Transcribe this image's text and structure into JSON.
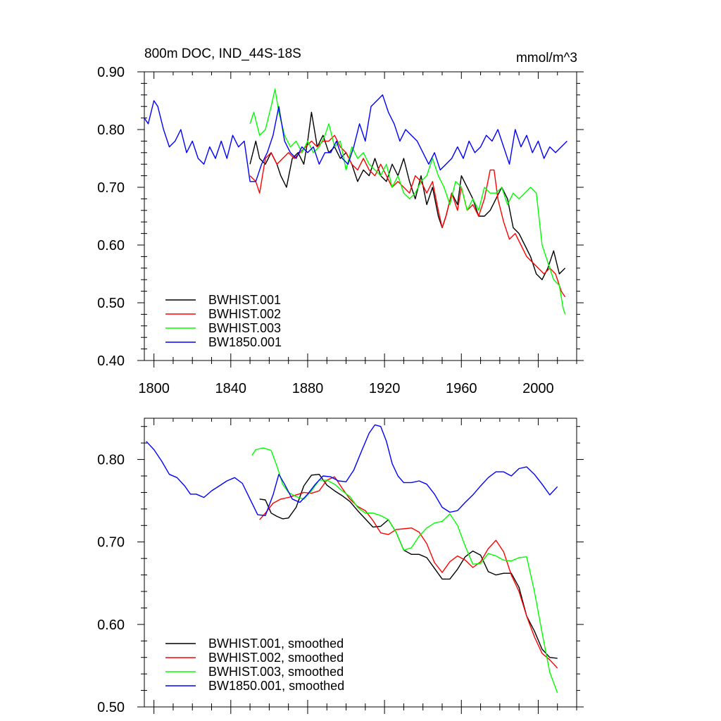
{
  "chart_data": [
    {
      "type": "line",
      "title": "800m DOC, IND_44S-18S",
      "units": "mmol/m^3",
      "xlim": [
        1795,
        2020
      ],
      "ylim": [
        0.4,
        0.9
      ],
      "xticks": [
        1800,
        1840,
        1880,
        1920,
        1960,
        2000
      ],
      "xtick_labels": [
        "1800",
        "1840",
        "1880",
        "1920",
        "1960",
        "2000"
      ],
      "yticks": [
        0.4,
        0.5,
        0.6,
        0.7,
        0.8,
        0.9
      ],
      "ytick_labels": [
        "0.40",
        "0.50",
        "0.60",
        "0.70",
        "0.80",
        "0.90"
      ],
      "legend_position": "bottom-left",
      "grid": false,
      "series": [
        {
          "name": "BWHIST.001",
          "color": "#000000",
          "x": [
            1850,
            1853,
            1855,
            1858,
            1861,
            1864,
            1866,
            1869,
            1872,
            1875,
            1878,
            1880,
            1882,
            1885,
            1888,
            1891,
            1894,
            1897,
            1900,
            1903,
            1906,
            1909,
            1912,
            1915,
            1918,
            1921,
            1924,
            1927,
            1930,
            1933,
            1936,
            1939,
            1942,
            1945,
            1948,
            1950,
            1952,
            1955,
            1958,
            1960,
            1963,
            1966,
            1969,
            1972,
            1975,
            1978,
            1981,
            1984,
            1987,
            1990,
            1993,
            1996,
            1999,
            2002,
            2005,
            2008,
            2011,
            2014
          ],
          "y": [
            0.74,
            0.78,
            0.75,
            0.74,
            0.76,
            0.74,
            0.72,
            0.7,
            0.75,
            0.76,
            0.74,
            0.78,
            0.83,
            0.77,
            0.79,
            0.76,
            0.77,
            0.75,
            0.76,
            0.74,
            0.71,
            0.73,
            0.72,
            0.75,
            0.72,
            0.71,
            0.74,
            0.72,
            0.75,
            0.71,
            0.68,
            0.72,
            0.67,
            0.7,
            0.65,
            0.63,
            0.65,
            0.69,
            0.67,
            0.72,
            0.7,
            0.68,
            0.65,
            0.65,
            0.66,
            0.68,
            0.7,
            0.68,
            0.63,
            0.62,
            0.6,
            0.58,
            0.55,
            0.54,
            0.56,
            0.59,
            0.55,
            0.56
          ]
        },
        {
          "name": "BWHIST.002",
          "color": "#ff0000",
          "x": [
            1850,
            1853,
            1855,
            1858,
            1861,
            1864,
            1867,
            1870,
            1873,
            1876,
            1879,
            1882,
            1885,
            1888,
            1891,
            1894,
            1897,
            1900,
            1903,
            1906,
            1909,
            1912,
            1915,
            1918,
            1921,
            1924,
            1927,
            1930,
            1933,
            1936,
            1939,
            1942,
            1945,
            1948,
            1950,
            1952,
            1955,
            1958,
            1960,
            1963,
            1966,
            1969,
            1972,
            1975,
            1977,
            1979,
            1982,
            1985,
            1988,
            1991,
            1994,
            1997,
            2000,
            2003,
            2006,
            2009,
            2012,
            2014
          ],
          "y": [
            0.72,
            0.71,
            0.69,
            0.75,
            0.76,
            0.74,
            0.75,
            0.76,
            0.75,
            0.76,
            0.77,
            0.78,
            0.77,
            0.78,
            0.78,
            0.79,
            0.77,
            0.76,
            0.74,
            0.73,
            0.75,
            0.73,
            0.72,
            0.74,
            0.72,
            0.7,
            0.71,
            0.7,
            0.69,
            0.72,
            0.71,
            0.69,
            0.71,
            0.66,
            0.63,
            0.65,
            0.69,
            0.66,
            0.7,
            0.66,
            0.67,
            0.65,
            0.68,
            0.73,
            0.73,
            0.68,
            0.64,
            0.61,
            0.62,
            0.6,
            0.58,
            0.57,
            0.56,
            0.55,
            0.56,
            0.55,
            0.52,
            0.51
          ]
        },
        {
          "name": "BWHIST.003",
          "color": "#00ff00",
          "x": [
            1850,
            1852,
            1855,
            1858,
            1861,
            1863,
            1865,
            1868,
            1871,
            1874,
            1877,
            1880,
            1883,
            1886,
            1889,
            1891,
            1894,
            1897,
            1900,
            1903,
            1906,
            1909,
            1912,
            1915,
            1918,
            1921,
            1924,
            1927,
            1930,
            1933,
            1936,
            1939,
            1942,
            1945,
            1948,
            1951,
            1954,
            1957,
            1960,
            1963,
            1966,
            1969,
            1972,
            1975,
            1978,
            1981,
            1984,
            1987,
            1990,
            1993,
            1996,
            1999,
            2002,
            2005,
            2008,
            2011,
            2013,
            2014
          ],
          "y": [
            0.81,
            0.83,
            0.79,
            0.8,
            0.84,
            0.87,
            0.83,
            0.79,
            0.77,
            0.78,
            0.76,
            0.78,
            0.76,
            0.77,
            0.79,
            0.81,
            0.77,
            0.78,
            0.73,
            0.77,
            0.75,
            0.76,
            0.74,
            0.73,
            0.72,
            0.74,
            0.7,
            0.72,
            0.69,
            0.68,
            0.69,
            0.71,
            0.72,
            0.75,
            0.72,
            0.7,
            0.67,
            0.71,
            0.7,
            0.66,
            0.68,
            0.66,
            0.7,
            0.69,
            0.69,
            0.7,
            0.67,
            0.69,
            0.68,
            0.69,
            0.7,
            0.69,
            0.6,
            0.57,
            0.54,
            0.53,
            0.49,
            0.48
          ]
        },
        {
          "name": "BW1850.001",
          "color": "#0000ff",
          "x": [
            1795,
            1797,
            1800,
            1802,
            1805,
            1808,
            1811,
            1814,
            1817,
            1820,
            1823,
            1826,
            1829,
            1832,
            1835,
            1838,
            1841,
            1844,
            1847,
            1850,
            1853,
            1856,
            1859,
            1862,
            1865,
            1868,
            1871,
            1874,
            1877,
            1880,
            1883,
            1886,
            1889,
            1892,
            1895,
            1898,
            1901,
            1904,
            1907,
            1910,
            1913,
            1916,
            1919,
            1922,
            1925,
            1928,
            1931,
            1934,
            1937,
            1940,
            1943,
            1946,
            1949,
            1952,
            1955,
            1958,
            1961,
            1964,
            1967,
            1970,
            1973,
            1976,
            1979,
            1982,
            1985,
            1988,
            1991,
            1994,
            1997,
            2000,
            2003,
            2006,
            2009,
            2012,
            2015
          ],
          "y": [
            0.82,
            0.81,
            0.85,
            0.84,
            0.8,
            0.77,
            0.78,
            0.8,
            0.76,
            0.78,
            0.75,
            0.74,
            0.77,
            0.75,
            0.78,
            0.75,
            0.79,
            0.77,
            0.78,
            0.71,
            0.71,
            0.74,
            0.76,
            0.79,
            0.84,
            0.78,
            0.76,
            0.75,
            0.77,
            0.76,
            0.77,
            0.74,
            0.76,
            0.76,
            0.78,
            0.75,
            0.74,
            0.77,
            0.81,
            0.78,
            0.84,
            0.85,
            0.86,
            0.83,
            0.81,
            0.78,
            0.8,
            0.79,
            0.78,
            0.76,
            0.74,
            0.76,
            0.73,
            0.74,
            0.75,
            0.77,
            0.75,
            0.78,
            0.76,
            0.77,
            0.79,
            0.78,
            0.8,
            0.77,
            0.74,
            0.8,
            0.77,
            0.79,
            0.76,
            0.78,
            0.75,
            0.77,
            0.76,
            0.77,
            0.78
          ]
        }
      ]
    },
    {
      "type": "line",
      "xlim": [
        1795,
        2020
      ],
      "ylim": [
        0.5,
        0.85
      ],
      "xticks": [
        1800,
        1840,
        1880,
        1920,
        1960,
        2000
      ],
      "yticks": [
        0.5,
        0.6,
        0.7,
        0.8
      ],
      "ytick_labels": [
        "0.50",
        "0.60",
        "0.70",
        "0.80"
      ],
      "legend_position": "bottom-left",
      "grid": false,
      "series": [
        {
          "name": "BWHIST.001, smoothed",
          "color": "#000000",
          "x": [
            1855,
            1858,
            1861,
            1864,
            1867,
            1870,
            1874,
            1878,
            1882,
            1886,
            1890,
            1894,
            1898,
            1902,
            1906,
            1910,
            1914,
            1918,
            1922,
            1926,
            1930,
            1934,
            1938,
            1942,
            1946,
            1950,
            1954,
            1958,
            1962,
            1966,
            1970,
            1974,
            1978,
            1982,
            1986,
            1990,
            1994,
            1998,
            2002,
            2006,
            2010
          ],
          "y": [
            0.752,
            0.751,
            0.735,
            0.731,
            0.728,
            0.729,
            0.742,
            0.768,
            0.781,
            0.782,
            0.769,
            0.762,
            0.756,
            0.749,
            0.738,
            0.728,
            0.718,
            0.719,
            0.727,
            0.712,
            0.69,
            0.685,
            0.685,
            0.681,
            0.668,
            0.655,
            0.655,
            0.667,
            0.682,
            0.689,
            0.684,
            0.664,
            0.66,
            0.662,
            0.662,
            0.645,
            0.61,
            0.592,
            0.57,
            0.56,
            0.559
          ]
        },
        {
          "name": "BWHIST.002, smoothed",
          "color": "#ff0000",
          "x": [
            1855,
            1858,
            1862,
            1866,
            1870,
            1874,
            1878,
            1882,
            1886,
            1890,
            1894,
            1898,
            1902,
            1906,
            1910,
            1914,
            1918,
            1922,
            1926,
            1930,
            1934,
            1938,
            1942,
            1946,
            1950,
            1954,
            1958,
            1962,
            1966,
            1970,
            1974,
            1978,
            1982,
            1986,
            1990,
            1994,
            1998,
            2002,
            2006,
            2010
          ],
          "y": [
            0.727,
            0.735,
            0.747,
            0.752,
            0.754,
            0.757,
            0.76,
            0.759,
            0.762,
            0.775,
            0.779,
            0.765,
            0.752,
            0.743,
            0.738,
            0.726,
            0.711,
            0.709,
            0.715,
            0.716,
            0.717,
            0.712,
            0.698,
            0.675,
            0.663,
            0.676,
            0.683,
            0.678,
            0.669,
            0.676,
            0.692,
            0.702,
            0.688,
            0.66,
            0.64,
            0.61,
            0.585,
            0.565,
            0.557,
            0.547
          ]
        },
        {
          "name": "BWHIST.003, smoothed",
          "color": "#00ff00",
          "x": [
            1851,
            1853,
            1857,
            1861,
            1864,
            1867,
            1870,
            1874,
            1878,
            1882,
            1886,
            1890,
            1894,
            1898,
            1902,
            1906,
            1910,
            1914,
            1918,
            1922,
            1926,
            1930,
            1934,
            1938,
            1942,
            1946,
            1950,
            1954,
            1958,
            1962,
            1966,
            1970,
            1974,
            1978,
            1982,
            1986,
            1990,
            1994,
            1998,
            2002,
            2006,
            2010
          ],
          "y": [
            0.805,
            0.812,
            0.814,
            0.811,
            0.792,
            0.77,
            0.76,
            0.755,
            0.752,
            0.762,
            0.775,
            0.775,
            0.77,
            0.762,
            0.755,
            0.742,
            0.735,
            0.735,
            0.732,
            0.727,
            0.712,
            0.69,
            0.693,
            0.707,
            0.717,
            0.723,
            0.725,
            0.734,
            0.72,
            0.695,
            0.673,
            0.674,
            0.686,
            0.683,
            0.678,
            0.677,
            0.681,
            0.682,
            0.64,
            0.59,
            0.542,
            0.517
          ]
        },
        {
          "name": "BW1850.001, smoothed",
          "color": "#0000ff",
          "x": [
            1796,
            1800,
            1804,
            1808,
            1812,
            1816,
            1819,
            1822,
            1826,
            1830,
            1834,
            1838,
            1842,
            1846,
            1850,
            1854,
            1858,
            1862,
            1865,
            1868,
            1872,
            1876,
            1880,
            1884,
            1888,
            1892,
            1896,
            1900,
            1904,
            1908,
            1912,
            1915,
            1918,
            1921,
            1924,
            1927,
            1930,
            1934,
            1938,
            1942,
            1946,
            1950,
            1954,
            1958,
            1962,
            1966,
            1970,
            1974,
            1978,
            1982,
            1986,
            1990,
            1994,
            1998,
            2002,
            2006,
            2010
          ],
          "y": [
            0.822,
            0.812,
            0.798,
            0.782,
            0.778,
            0.768,
            0.758,
            0.758,
            0.754,
            0.762,
            0.768,
            0.774,
            0.778,
            0.771,
            0.752,
            0.733,
            0.732,
            0.757,
            0.782,
            0.77,
            0.752,
            0.748,
            0.758,
            0.77,
            0.78,
            0.779,
            0.774,
            0.773,
            0.787,
            0.81,
            0.832,
            0.842,
            0.84,
            0.822,
            0.795,
            0.78,
            0.772,
            0.772,
            0.774,
            0.77,
            0.758,
            0.742,
            0.736,
            0.738,
            0.748,
            0.757,
            0.768,
            0.778,
            0.785,
            0.785,
            0.78,
            0.789,
            0.791,
            0.782,
            0.77,
            0.757,
            0.767
          ]
        }
      ]
    }
  ]
}
